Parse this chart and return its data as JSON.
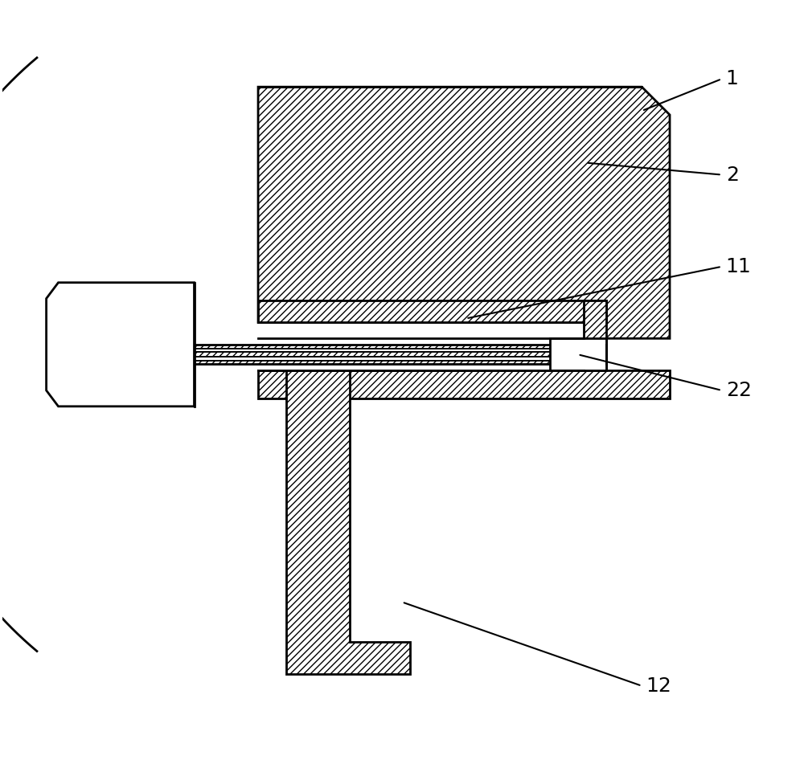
{
  "background_color": "#ffffff",
  "line_color": "#000000",
  "fig_width": 10.0,
  "fig_height": 9.51,
  "label_fontsize": 18,
  "lw": 2.0
}
